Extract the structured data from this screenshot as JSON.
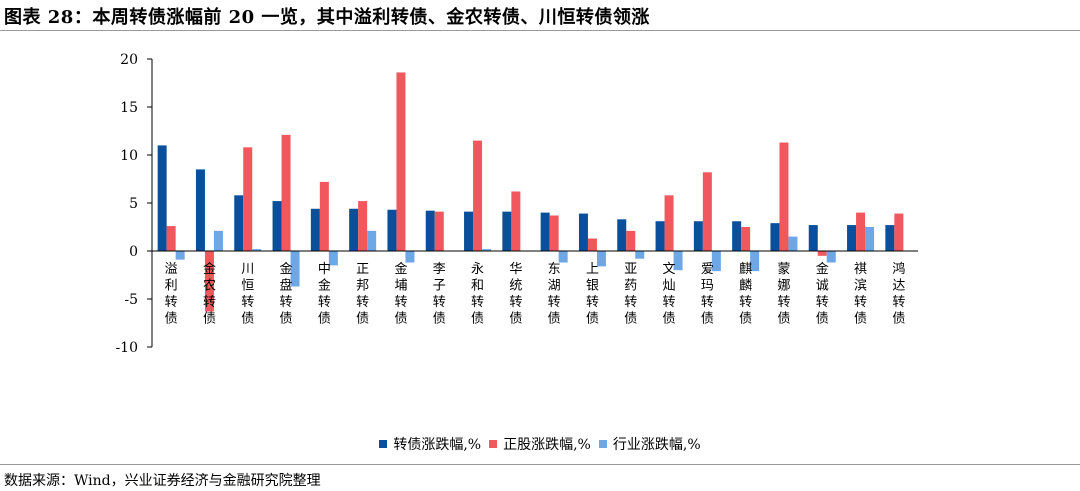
{
  "title": "图表 28：本周转债涨幅前 20 一览，其中溢利转债、金农转债、川恒转债领涨",
  "source": "数据来源：Wind，兴业证券经济与金融研究院整理",
  "chart_data": {
    "type": "bar",
    "categories": [
      "溢利转债",
      "金农转债",
      "川恒转债",
      "金盘转债",
      "中金转债",
      "正邦转债",
      "金埔转债",
      "李子转债",
      "永和转债",
      "华统转债",
      "东湖转债",
      "上银转债",
      "亚药转债",
      "文灿转债",
      "爱玛转债",
      "麒麟转债",
      "蒙娜转债",
      "金诚转债",
      "祺滨转债",
      "鸿达转债"
    ],
    "series": [
      {
        "name": "转债涨跌幅,%",
        "color": "#0a4f9c",
        "values": [
          11.0,
          8.5,
          5.8,
          5.2,
          4.4,
          4.4,
          4.3,
          4.2,
          4.1,
          4.1,
          4.0,
          3.9,
          3.3,
          3.1,
          3.1,
          3.1,
          2.9,
          2.7,
          2.7,
          2.7
        ]
      },
      {
        "name": "正股涨跌幅,%",
        "color": "#f1585d",
        "values": [
          2.6,
          -6.3,
          10.8,
          12.1,
          7.2,
          5.2,
          18.6,
          4.1,
          11.5,
          6.2,
          3.7,
          1.3,
          2.1,
          5.8,
          8.2,
          2.5,
          11.3,
          -0.5,
          4.0,
          3.9
        ]
      },
      {
        "name": "行业涨跌幅,%",
        "color": "#6ea7e6",
        "values": [
          -0.9,
          2.1,
          0.2,
          -3.7,
          -1.5,
          2.1,
          -1.2,
          0.0,
          0.2,
          0.0,
          -1.2,
          -1.6,
          -0.8,
          -2.0,
          -2.1,
          -2.1,
          1.5,
          -1.2,
          2.5,
          0.0
        ]
      }
    ],
    "yticks": [
      20,
      15,
      10,
      5,
      0,
      -5,
      -10
    ],
    "ylim": [
      -10,
      20
    ],
    "legend_position": "bottom-center",
    "grid": false
  }
}
